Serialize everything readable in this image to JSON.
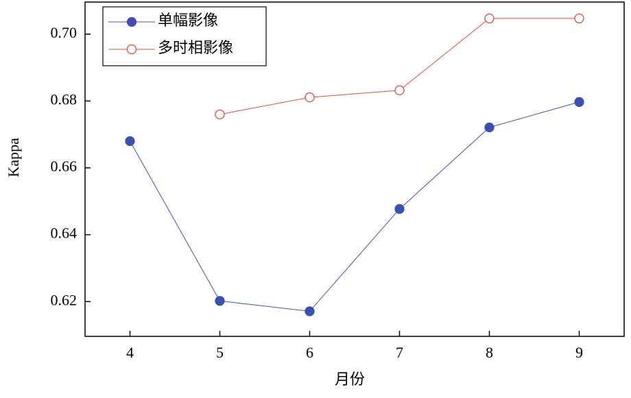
{
  "chart_data": {
    "type": "line",
    "x_label": "月份",
    "y_label": "Kappa",
    "x": [
      4,
      5,
      6,
      7,
      8,
      9
    ],
    "series": [
      {
        "name": "单幅影像",
        "color": "#3b51b0",
        "marker": "filled",
        "values": [
          0.668,
          0.6202,
          0.6171,
          0.6477,
          0.6721,
          0.6797
        ]
      },
      {
        "name": "多时相影像",
        "color": "#e8463f",
        "marker": "open",
        "values": [
          null,
          0.676,
          0.6811,
          0.6832,
          0.7047,
          0.7047
        ]
      }
    ],
    "xlim": [
      3.5,
      9.5
    ],
    "xticks": [
      4,
      5,
      6,
      7,
      8,
      9
    ],
    "ylim": [
      0.6096,
      0.7096
    ],
    "yticks": [
      0.62,
      0.64,
      0.66,
      0.68,
      {
        "value": 0.7,
        "label": "0.70"
      }
    ],
    "legend": "upper-left",
    "grid": false
  }
}
